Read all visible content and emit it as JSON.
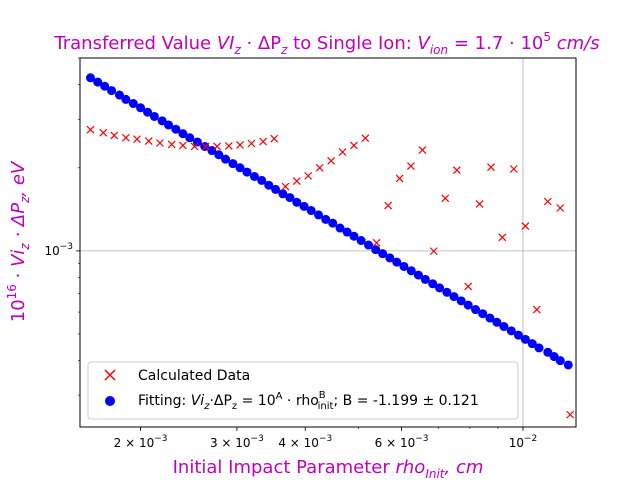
{
  "chart_data": {
    "type": "scatter",
    "title_parts": [
      "Transferred Value ",
      "VI",
      "z",
      " · ΔP",
      "z",
      " to Single Ion: ",
      "V",
      "ion",
      " = 1.7 · 10",
      "5",
      " cm/s"
    ],
    "ylabel_parts": [
      "10",
      "16",
      " · ",
      "Vi",
      "z",
      " · ΔP",
      "z",
      ", eV"
    ],
    "xlabel_parts": [
      "Initial Impact Parameter ",
      "rho",
      "Init",
      ", cm"
    ],
    "xscale": "log",
    "yscale": "log",
    "xlim": [
      0.00155,
      0.0125
    ],
    "ylim": [
      0.00023,
      0.005
    ],
    "xticks": [
      {
        "value": 0.002,
        "base": "2 × 10",
        "exp": "−3"
      },
      {
        "value": 0.003,
        "base": "3 × 10",
        "exp": "−3"
      },
      {
        "value": 0.004,
        "base": "4 × 10",
        "exp": "−3"
      },
      {
        "value": 0.006,
        "base": "6 × 10",
        "exp": "−3"
      },
      {
        "value": 0.01,
        "base": "10",
        "exp": "−2"
      }
    ],
    "yticks": [
      {
        "value": 0.001,
        "base": "10",
        "exp": "−3"
      }
    ],
    "grid": {
      "x": [
        0.01
      ],
      "y": [
        0.001
      ]
    },
    "colors": {
      "calculated": "#ff0000",
      "fitting": "#0000ff",
      "text": "#bf00bf"
    },
    "legend": {
      "position": "lower-left",
      "entries": [
        {
          "marker": "x",
          "color": "#ff0000",
          "parts": [
            "Calculated Data"
          ]
        },
        {
          "marker": "o",
          "color": "#0000ff",
          "parts": [
            "Fitting: ",
            "Vi",
            "z",
            "·",
            "ΔP",
            "z",
            " = 10",
            "A",
            " · rho",
            "B",
            "init",
            "; B = -1.199 ± 0.121"
          ]
        }
      ]
    },
    "series": [
      {
        "name": "Calculated Data",
        "marker": "x",
        "x": [
          0.00162,
          0.00171,
          0.00179,
          0.00188,
          0.00197,
          0.00207,
          0.00217,
          0.00228,
          0.00239,
          0.00251,
          0.00263,
          0.00276,
          0.0029,
          0.00304,
          0.00319,
          0.00335,
          0.00351,
          0.00368,
          0.00386,
          0.00405,
          0.00425,
          0.00446,
          0.00468,
          0.00491,
          0.00515,
          0.0054,
          0.00567,
          0.00595,
          0.00624,
          0.00655,
          0.00687,
          0.00721,
          0.00757,
          0.00794,
          0.00833,
          0.00874,
          0.00917,
          0.00962,
          0.0101,
          0.0106,
          0.0111,
          0.0117,
          0.0122
        ],
        "y": [
          0.00275,
          0.00268,
          0.00262,
          0.00257,
          0.00254,
          0.0025,
          0.00246,
          0.00243,
          0.00241,
          0.00239,
          0.00239,
          0.00239,
          0.0024,
          0.00242,
          0.00245,
          0.00249,
          0.00255,
          0.00171,
          0.00179,
          0.00187,
          0.002,
          0.00212,
          0.00228,
          0.00241,
          0.00256,
          0.00107,
          0.00146,
          0.00183,
          0.00203,
          0.00232,
          0.000998,
          0.00155,
          0.00196,
          0.000743,
          0.00148,
          0.00201,
          0.00112,
          0.00198,
          0.00123,
          0.000613,
          0.00151,
          0.00143,
          0.000255
        ]
      },
      {
        "name": "Fitting",
        "marker": "o",
        "x": [
          0.00162,
          0.00167,
          0.00172,
          0.00177,
          0.00183,
          0.00188,
          0.00194,
          0.002,
          0.00206,
          0.00212,
          0.00219,
          0.00225,
          0.00232,
          0.00239,
          0.00246,
          0.00254,
          0.00262,
          0.0027,
          0.00278,
          0.00286,
          0.00295,
          0.00304,
          0.00313,
          0.00323,
          0.00333,
          0.00343,
          0.00353,
          0.00364,
          0.00375,
          0.00386,
          0.00398,
          0.0041,
          0.00423,
          0.00436,
          0.00449,
          0.00463,
          0.00477,
          0.00491,
          0.00506,
          0.00522,
          0.00538,
          0.00554,
          0.00571,
          0.00588,
          0.00606,
          0.00625,
          0.00644,
          0.00663,
          0.00684,
          0.00704,
          0.00726,
          0.00748,
          0.00771,
          0.00794,
          0.00819,
          0.00844,
          0.0087,
          0.00896,
          0.00923,
          0.00952,
          0.00981,
          0.0101,
          0.0104,
          0.0107,
          0.0111,
          0.0114,
          0.0117,
          0.0121
        ],
        "y": [
          0.00424,
          0.00409,
          0.00395,
          0.00381,
          0.00367,
          0.00354,
          0.00342,
          0.0033,
          0.00318,
          0.00307,
          0.00296,
          0.00286,
          0.00276,
          0.00266,
          0.00257,
          0.00248,
          0.00239,
          0.00231,
          0.00223,
          0.00215,
          0.00207,
          0.002,
          0.00193,
          0.00186,
          0.0018,
          0.00173,
          0.00167,
          0.00161,
          0.00156,
          0.0015,
          0.00145,
          0.0014,
          0.00135,
          0.0013,
          0.00126,
          0.00121,
          0.00117,
          0.00113,
          0.00109,
          0.00105,
          0.00101,
          0.000977,
          0.000943,
          0.00091,
          0.000878,
          0.000847,
          0.000817,
          0.000788,
          0.00076,
          0.000734,
          0.000708,
          0.000683,
          0.000659,
          0.000636,
          0.000613,
          0.000592,
          0.000571,
          0.000551,
          0.000532,
          0.000513,
          0.000495,
          0.000478,
          0.000461,
          0.000445,
          0.000429,
          0.000414,
          0.0004,
          0.000386
        ]
      }
    ]
  }
}
